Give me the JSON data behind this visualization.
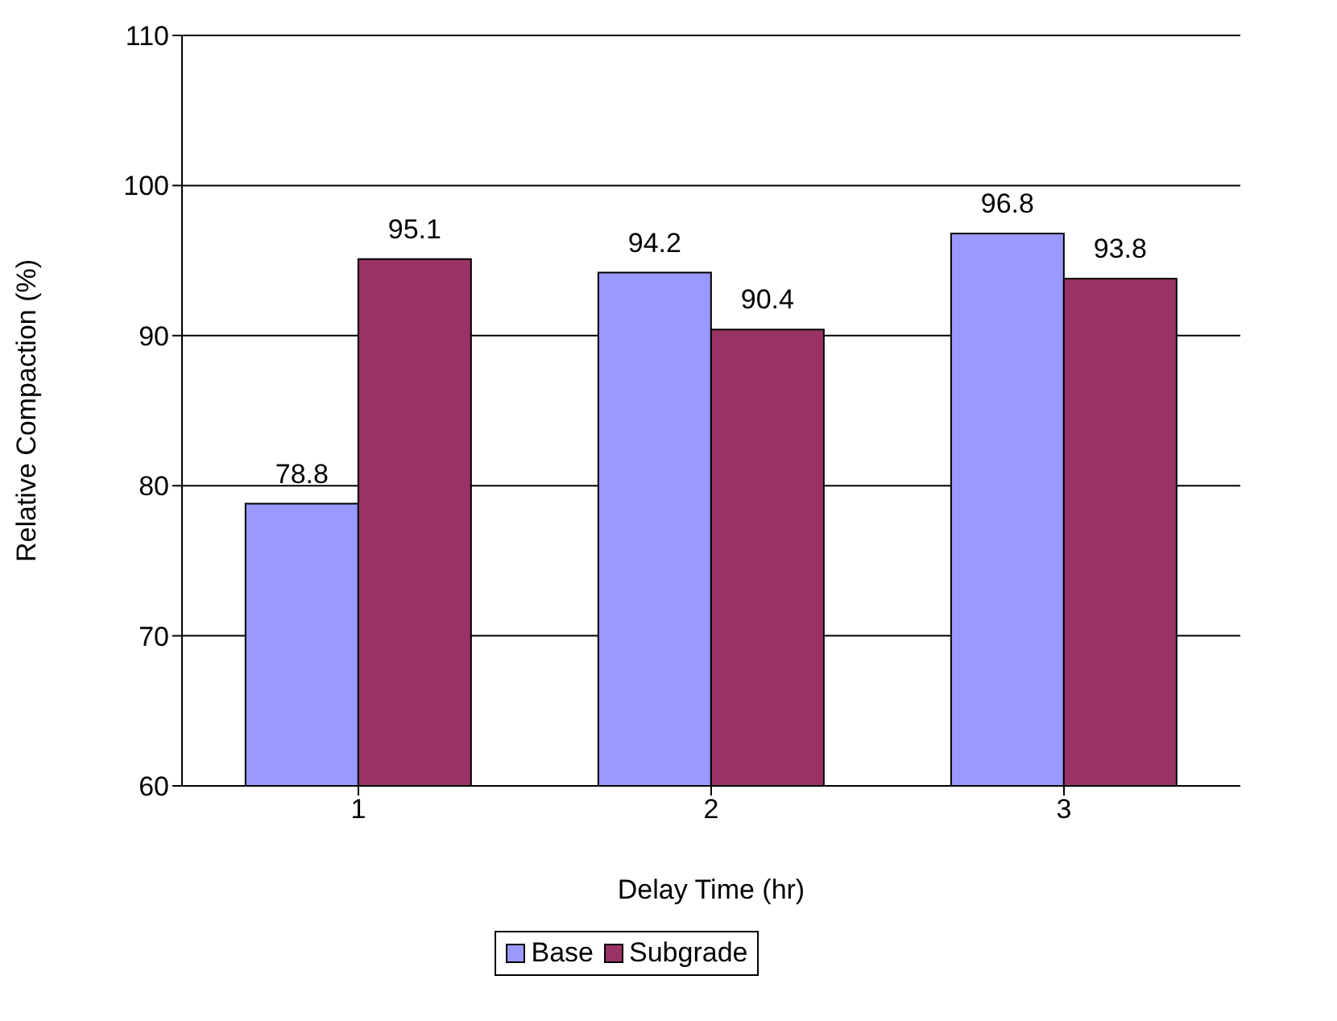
{
  "chart_data": {
    "type": "bar",
    "xlabel": "Delay Time (hr)",
    "ylabel": "Relative Compaction (%)",
    "categories": [
      "1",
      "2",
      "3"
    ],
    "series": [
      {
        "name": "Base",
        "color": "#9999ff",
        "values": [
          78.8,
          94.2,
          96.8
        ]
      },
      {
        "name": "Subgrade",
        "color": "#993366",
        "values": [
          95.1,
          90.4,
          93.8
        ]
      }
    ],
    "ylim": [
      60,
      110
    ],
    "yticks": [
      60,
      70,
      80,
      90,
      100,
      110
    ],
    "grid": "y",
    "legend": "bottom",
    "data_labels": true
  }
}
